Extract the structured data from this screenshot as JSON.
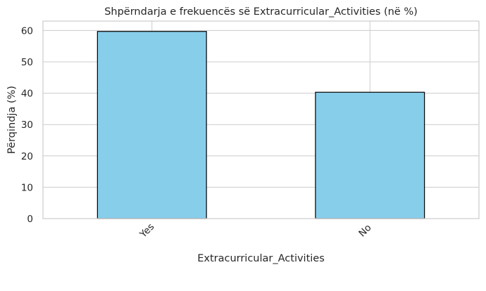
{
  "chart_data": {
    "type": "bar",
    "title": "Shpërndarja e frekuencës së Extracurricular_Activities (në %)",
    "xlabel": "Extracurricular_Activities",
    "ylabel": "Përqindja (%)",
    "categories": [
      "Yes",
      "No"
    ],
    "values": [
      59.7,
      40.3
    ],
    "ylim": [
      0,
      63
    ],
    "yticks": [
      0,
      10,
      20,
      30,
      40,
      50,
      60
    ],
    "grid": true,
    "legend": "none",
    "bar_color": "#87CEEB",
    "bar_edge_color": "#000000",
    "grid_color": "#cccccc"
  }
}
